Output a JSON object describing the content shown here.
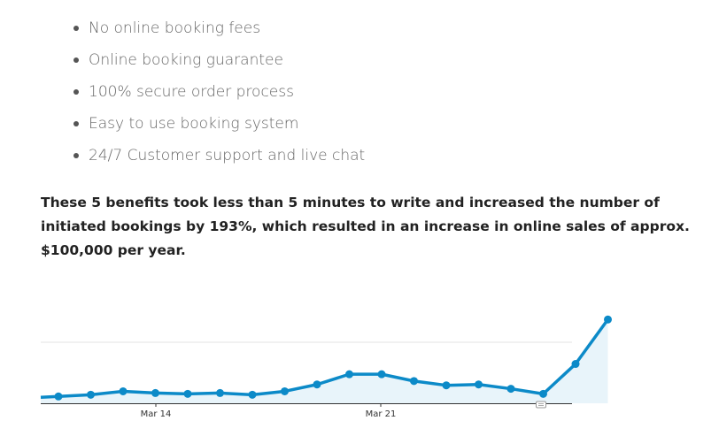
{
  "benefits": [
    "No online booking fees",
    "Online booking guarantee",
    "100% secure order process",
    "Easy to use booking system",
    "24/7 Customer support and live chat"
  ],
  "paragraph": "These 5 benefits took less than 5 minutes to write and increased the number of initiated bookings by 193%, which resulted in an increase in online sales of approx. $100,000 per year.",
  "chart_data": {
    "type": "area",
    "title": "",
    "xlabel": "",
    "ylabel": "",
    "x_ticks": [
      "Mar 14",
      "Mar 21"
    ],
    "values": [
      4,
      5,
      7,
      6,
      5.5,
      6,
      5,
      7,
      11,
      17,
      17,
      13,
      10.5,
      11,
      8.5,
      5.5,
      23,
      49
    ],
    "ylim": [
      0,
      60
    ],
    "grid": true,
    "legend": "none",
    "colors": {
      "line": "#0c8ac8",
      "fill": "#e8f4fa",
      "grid": "#e3e3e3",
      "axis": "#333333"
    },
    "annotation_icon": "comment-icon"
  }
}
